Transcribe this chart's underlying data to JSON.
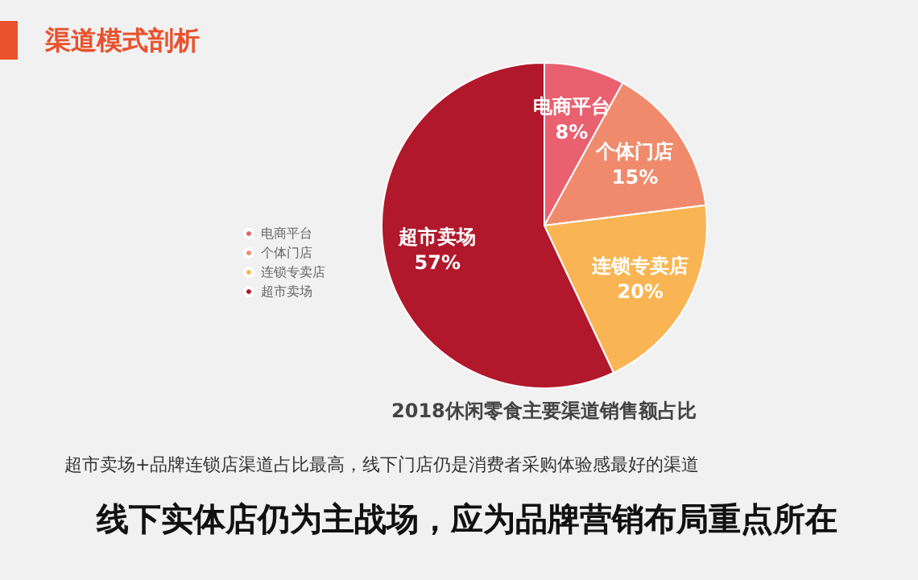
{
  "chart_data": {
    "type": "pie",
    "title": "2018休闲零食主要渠道销售额占比",
    "categories": [
      "电商平台",
      "个体门店",
      "连锁专卖店",
      "超市卖场"
    ],
    "values": [
      8,
      15,
      20,
      57
    ],
    "value_labels": [
      "8%",
      "15%",
      "20%",
      "57%"
    ],
    "colors": [
      "#e9606f",
      "#ef8b6c",
      "#f9b553",
      "#b1182c"
    ],
    "legend": "left",
    "annotations": [
      "渠道模式剖析",
      "超市卖场+品牌连锁店渠道占比最高，线下门店仍是消费者采购体验感最好的渠道",
      "线下实体店仍为主战场，应为品牌营销布局重点所在"
    ]
  }
}
